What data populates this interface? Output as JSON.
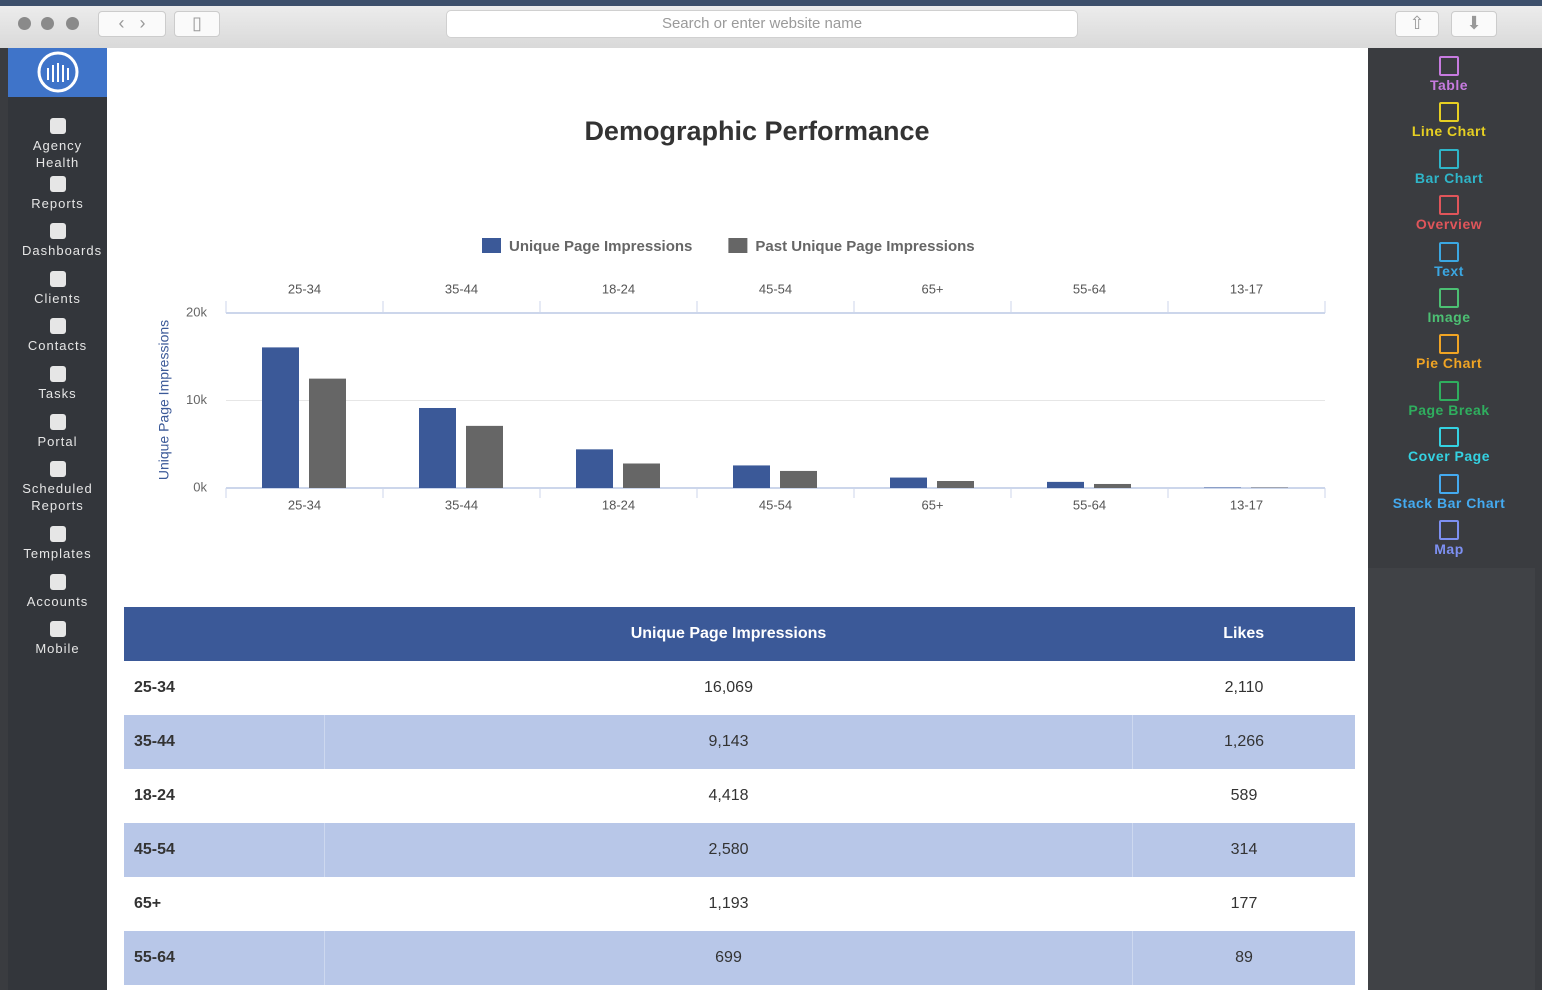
{
  "browser": {
    "search_placeholder": "Search or enter website name"
  },
  "sidebar": [
    "Agency Health",
    "Reports",
    "Dashboards",
    "Clients",
    "Contacts",
    "Tasks",
    "Portal",
    "Scheduled Reports",
    "Templates",
    "Accounts",
    "Mobile"
  ],
  "palette": [
    {
      "label": "Table",
      "color": "#c77be0"
    },
    {
      "label": "Line Chart",
      "color": "#e6cf22"
    },
    {
      "label": "Bar Chart",
      "color": "#2fb6c9"
    },
    {
      "label": "Overview",
      "color": "#e0555a"
    },
    {
      "label": "Text",
      "color": "#3ba7e2"
    },
    {
      "label": "Image",
      "color": "#4cc073"
    },
    {
      "label": "Pie Chart",
      "color": "#f0a424"
    },
    {
      "label": "Page Break",
      "color": "#2fae5e"
    },
    {
      "label": "Cover Page",
      "color": "#34d2e2"
    },
    {
      "label": "Stack Bar Chart",
      "color": "#44aaf0"
    },
    {
      "label": "Map",
      "color": "#7d90f2"
    }
  ],
  "chart_data": {
    "type": "bar",
    "title": "Demographic Performance",
    "categories": [
      "25-34",
      "35-44",
      "18-24",
      "45-54",
      "65+",
      "55-64",
      "13-17"
    ],
    "series": [
      {
        "name": "Unique Page Impressions",
        "color": "#3b5998",
        "values": [
          16069,
          9143,
          4418,
          2580,
          1193,
          699,
          50
        ]
      },
      {
        "name": "Past Unique Page Impressions",
        "color": "#666666",
        "values": [
          12500,
          7100,
          2800,
          1950,
          800,
          460,
          50
        ]
      }
    ],
    "y_label": "Unique Page Impressions",
    "ylim": [
      0,
      20000
    ],
    "yticks": [
      {
        "value": 0,
        "label": "0k"
      },
      {
        "value": 10000,
        "label": "10k"
      },
      {
        "value": 20000,
        "label": "20k"
      }
    ],
    "grid": true
  },
  "table": {
    "header": [
      "Unique Page Impressions",
      "Likes"
    ],
    "rows": [
      [
        "25-34",
        "16,069",
        "2,110"
      ],
      [
        "35-44",
        "9,143",
        "1,266"
      ],
      [
        "18-24",
        "4,418",
        "589"
      ],
      [
        "45-54",
        "2,580",
        "314"
      ],
      [
        "65+",
        "1,193",
        "177"
      ],
      [
        "55-64",
        "699",
        "89"
      ]
    ]
  }
}
